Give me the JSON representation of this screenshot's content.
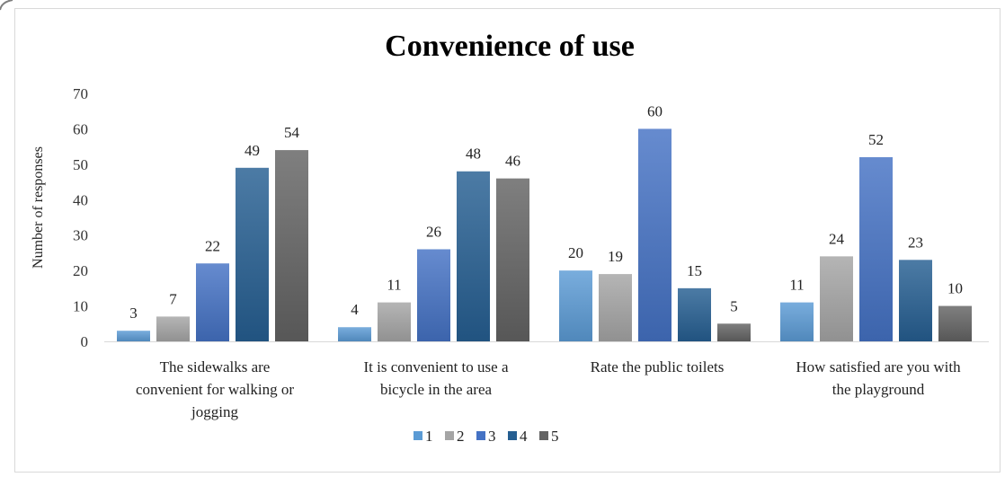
{
  "chart_data": {
    "type": "bar",
    "title": "Convenience of use",
    "ylabel": "Number of responses",
    "xlabel": "",
    "ylim": [
      0,
      70
    ],
    "yticks": [
      0,
      10,
      20,
      30,
      40,
      50,
      60,
      70
    ],
    "grid": false,
    "legend_position": "bottom",
    "categories": [
      [
        "The sidewalks are",
        "convenient for walking or",
        "jogging"
      ],
      [
        "It is convenient to use a",
        "bicycle in the area"
      ],
      [
        "Rate the public toilets"
      ],
      [
        "How satisfied are you with",
        "the playground"
      ]
    ],
    "series": [
      {
        "name": "1",
        "color": "#5b9bd5",
        "values": [
          3,
          4,
          20,
          11
        ]
      },
      {
        "name": "2",
        "color": "#a5a5a5",
        "values": [
          7,
          11,
          19,
          24
        ]
      },
      {
        "name": "3",
        "color": "#4472c4",
        "values": [
          22,
          26,
          60,
          52
        ]
      },
      {
        "name": "4",
        "color": "#255e91",
        "values": [
          49,
          48,
          15,
          23
        ]
      },
      {
        "name": "5",
        "color": "#636363",
        "values": [
          54,
          46,
          5,
          10
        ]
      }
    ]
  }
}
